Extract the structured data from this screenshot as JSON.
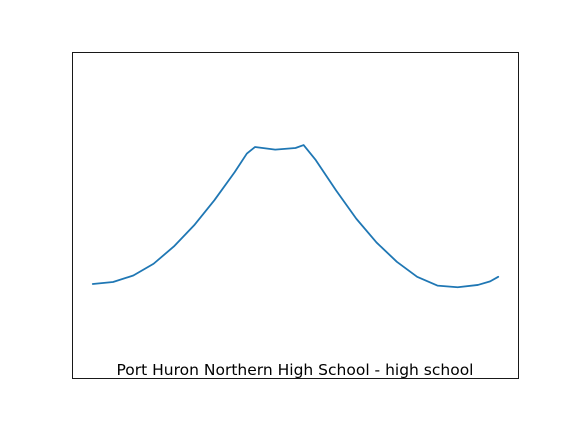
{
  "chart_data": {
    "type": "line",
    "title": "",
    "caption": "Port Huron Northern High School - high school",
    "xlabel": "",
    "ylabel": "",
    "axis_ticks": "hidden",
    "grid": false,
    "xlim": [
      -0.25,
      5.25
    ],
    "ylim": [
      0,
      1
    ],
    "series": [
      {
        "color": "#1f77b4",
        "x": [
          0,
          0.25,
          0.5,
          0.75,
          1.0,
          1.25,
          1.5,
          1.75,
          1.9,
          2.0,
          2.25,
          2.5,
          2.6,
          2.75,
          3.0,
          3.25,
          3.5,
          3.75,
          4.0,
          4.25,
          4.5,
          4.75,
          4.9,
          5.0
        ],
        "y": [
          0.29,
          0.296,
          0.316,
          0.352,
          0.405,
          0.47,
          0.547,
          0.633,
          0.69,
          0.71,
          0.702,
          0.707,
          0.716,
          0.67,
          0.577,
          0.49,
          0.417,
          0.358,
          0.312,
          0.285,
          0.28,
          0.287,
          0.298,
          0.312
        ]
      }
    ]
  }
}
